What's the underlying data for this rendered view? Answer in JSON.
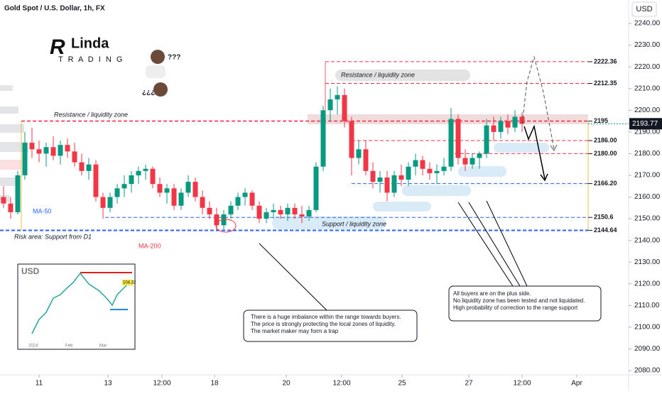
{
  "chart_data": {
    "type": "candlestick",
    "title": "Gold Spot / U.S. Dollar, 1h, FX",
    "currency": "USD",
    "up_color": "#089981",
    "down_color": "#f23645",
    "x": [
      0,
      1,
      2,
      3,
      4,
      5,
      6,
      7,
      8,
      9,
      10,
      11,
      12,
      13,
      14,
      15,
      16,
      17,
      18,
      19,
      20,
      21,
      22,
      23,
      24,
      25,
      26,
      27,
      28,
      29,
      30,
      31,
      32,
      33,
      34,
      35,
      36,
      37,
      38,
      39,
      40,
      41,
      42,
      43,
      44,
      45,
      46,
      47,
      48,
      49,
      50,
      51,
      52,
      53,
      54,
      55,
      56,
      57,
      58,
      59,
      60,
      61,
      62,
      63,
      64,
      65,
      66,
      67,
      68,
      69,
      70,
      71,
      72,
      73
    ],
    "open": [
      2160,
      2157,
      2153,
      2170,
      2185,
      2182,
      2180,
      2183,
      2179,
      2184,
      2181,
      2176,
      2172,
      2175,
      2160,
      2155,
      2160,
      2164,
      2166,
      2170,
      2172,
      2173,
      2166,
      2162,
      2164,
      2156,
      2162,
      2167,
      2160,
      2155,
      2152,
      2147,
      2152,
      2156,
      2160,
      2162,
      2156,
      2150,
      2153,
      2154,
      2152,
      2155,
      2152,
      2151,
      2154,
      2174,
      2200,
      2205,
      2207,
      2195,
      2178,
      2182,
      2172,
      2167,
      2169,
      2162,
      2170,
      2168,
      2174,
      2177,
      2173,
      2171,
      2172,
      2174,
      2196,
      2178,
      2175,
      2178,
      2180,
      2193,
      2190,
      2195,
      2192,
      2197
    ],
    "high": [
      2165,
      2160,
      2172,
      2190,
      2192,
      2186,
      2185,
      2188,
      2186,
      2187,
      2185,
      2180,
      2178,
      2177,
      2162,
      2162,
      2166,
      2170,
      2172,
      2174,
      2175,
      2174,
      2169,
      2166,
      2166,
      2164,
      2170,
      2169,
      2163,
      2158,
      2155,
      2154,
      2158,
      2162,
      2164,
      2163,
      2158,
      2155,
      2157,
      2156,
      2157,
      2157,
      2156,
      2156,
      2176,
      2202,
      2210,
      2211,
      2210,
      2197,
      2186,
      2186,
      2176,
      2172,
      2172,
      2172,
      2175,
      2176,
      2180,
      2179,
      2176,
      2175,
      2178,
      2201,
      2198,
      2182,
      2180,
      2181,
      2196,
      2197,
      2197,
      2198,
      2200,
      2199
    ],
    "low": [
      2155,
      2150,
      2152,
      2168,
      2178,
      2176,
      2174,
      2177,
      2175,
      2178,
      2174,
      2170,
      2168,
      2158,
      2150,
      2153,
      2157,
      2160,
      2162,
      2166,
      2168,
      2164,
      2160,
      2157,
      2154,
      2154,
      2160,
      2158,
      2152,
      2150,
      2145,
      2145,
      2150,
      2154,
      2156,
      2154,
      2148,
      2148,
      2150,
      2150,
      2149,
      2150,
      2148,
      2149,
      2153,
      2172,
      2195,
      2198,
      2192,
      2170,
      2175,
      2170,
      2164,
      2162,
      2158,
      2160,
      2165,
      2165,
      2170,
      2170,
      2168,
      2166,
      2170,
      2172,
      2175,
      2172,
      2173,
      2173,
      2178,
      2186,
      2187,
      2189,
      2190,
      2190
    ],
    "close": [
      2157,
      2153,
      2170,
      2185,
      2182,
      2180,
      2183,
      2179,
      2184,
      2181,
      2176,
      2172,
      2175,
      2160,
      2155,
      2160,
      2164,
      2166,
      2170,
      2172,
      2173,
      2166,
      2162,
      2164,
      2156,
      2162,
      2167,
      2160,
      2155,
      2152,
      2147,
      2152,
      2156,
      2160,
      2162,
      2156,
      2150,
      2153,
      2154,
      2152,
      2155,
      2152,
      2151,
      2154,
      2174,
      2200,
      2205,
      2207,
      2195,
      2178,
      2182,
      2172,
      2167,
      2169,
      2162,
      2170,
      2168,
      2174,
      2177,
      2173,
      2171,
      2172,
      2174,
      2196,
      2178,
      2175,
      2178,
      2180,
      2193,
      2190,
      2195,
      2192,
      2197,
      2193.77
    ],
    "xlim": [
      -0.5,
      88
    ],
    "ylim": [
      2077.4,
      2250.8
    ],
    "xticks": [
      {
        "value": 5,
        "label": "11"
      },
      {
        "value": 14.7,
        "label": "13"
      },
      {
        "value": 22.3,
        "label": "12:00"
      },
      {
        "value": 29.7,
        "label": "18"
      },
      {
        "value": 39.8,
        "label": "20"
      },
      {
        "value": 47.6,
        "label": "12:00"
      },
      {
        "value": 56.1,
        "label": "25"
      },
      {
        "value": 65.5,
        "label": "27"
      },
      {
        "value": 73,
        "label": "12:00"
      },
      {
        "value": 80.7,
        "label": "Apr"
      }
    ],
    "yticks": [
      {
        "value": 2080,
        "label": "2080.00"
      },
      {
        "value": 2090,
        "label": "2090.00"
      },
      {
        "value": 2100,
        "label": "2100.00"
      },
      {
        "value": 2110,
        "label": "2110.00"
      },
      {
        "value": 2120,
        "label": "2120.00"
      },
      {
        "value": 2130,
        "label": "2130.00"
      },
      {
        "value": 2140,
        "label": "2140.00"
      },
      {
        "value": 2150,
        "label": "2150.00"
      },
      {
        "value": 2160,
        "label": "2160.00"
      },
      {
        "value": 2170,
        "label": "2170.00"
      },
      {
        "value": 2180,
        "label": "2180.00"
      },
      {
        "value": 2190,
        "label": "2190.00"
      },
      {
        "value": 2200,
        "label": "2200.00"
      },
      {
        "value": 2210,
        "label": "2210.00"
      },
      {
        "value": 2220,
        "label": "2220.00"
      },
      {
        "value": 2230,
        "label": "2230.00"
      },
      {
        "value": 2240,
        "label": "2240.00"
      }
    ],
    "last_price": 2193.77,
    "levels": [
      {
        "value": 2222.36,
        "color": "#f23645"
      },
      {
        "value": 2212.35,
        "color": "#f23645"
      },
      {
        "value": 2195,
        "color": "#f23645"
      },
      {
        "value": 2186,
        "label": "2186.00",
        "color": "#f23645"
      },
      {
        "value": 2180,
        "label": "2180.00",
        "color": "#f23645"
      },
      {
        "value": 2166.2,
        "label": "2166.20",
        "color": "#2962ff"
      },
      {
        "value": 2150.6,
        "color": "#2962ff"
      },
      {
        "value": 2144.64,
        "color": "#2962ff"
      }
    ],
    "labels": {
      "resistance_left": "Resistance / liquidity zone",
      "resistance_top": "Resistance / liquidity zone",
      "support": "Support / liquidity zone",
      "risk": "Risk area: Support from D1",
      "ma50": "MA-50",
      "ma200": "MA-200",
      "question": "???",
      "question_inv": "¿¿¿"
    },
    "logo": {
      "name": "Linda",
      "initial": "R",
      "sub": "T  R  A  D  I  N  G"
    },
    "notes": [
      [
        "There is a huge imbalance within the range towards buyers.",
        "The price is strongly protecting the local zones of liquidity.",
        "The market maker may form a trap"
      ],
      [
        "All buyers are on the plus side.",
        "No liquidity zone has been tested and not liquidated.",
        "High probability of correction to the range support"
      ]
    ],
    "inset": {
      "title": "USD",
      "last": "104.32",
      "months": [
        "2024",
        "Feb",
        "Mar"
      ]
    }
  }
}
